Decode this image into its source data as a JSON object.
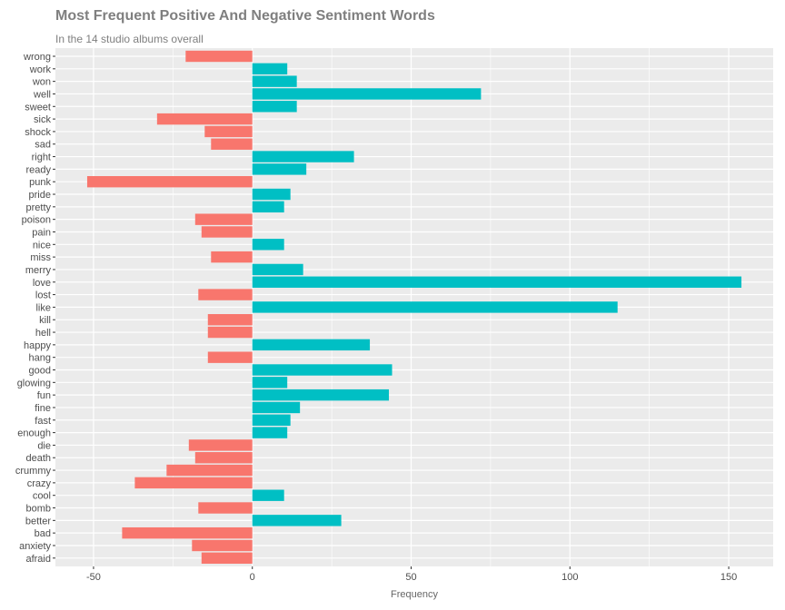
{
  "chart_data": {
    "type": "bar",
    "orientation": "horizontal",
    "title": "Most Frequent Positive And Negative Sentiment Words",
    "subtitle": "In the 14 studio albums overall",
    "xlabel": "Frequency",
    "ylabel": "",
    "xlim": [
      -62,
      164
    ],
    "xticks": [
      -50,
      0,
      50,
      100,
      150
    ],
    "grid": true,
    "legend": "none",
    "colors": {
      "negative": "#F8766D",
      "positive": "#00BFC4",
      "panel": "#EBEBEB",
      "grid": "#FFFFFF"
    },
    "categories": [
      "wrong",
      "work",
      "won",
      "well",
      "sweet",
      "sick",
      "shock",
      "sad",
      "right",
      "ready",
      "punk",
      "pride",
      "pretty",
      "poison",
      "pain",
      "nice",
      "miss",
      "merry",
      "love",
      "lost",
      "like",
      "kill",
      "hell",
      "happy",
      "hang",
      "good",
      "glowing",
      "fun",
      "fine",
      "fast",
      "enough",
      "die",
      "death",
      "crummy",
      "crazy",
      "cool",
      "bomb",
      "better",
      "bad",
      "anxiety",
      "afraid"
    ],
    "values": [
      -21,
      11,
      14,
      72,
      14,
      -30,
      -15,
      -13,
      32,
      17,
      -52,
      12,
      10,
      -18,
      -16,
      10,
      -13,
      16,
      154,
      -17,
      115,
      -14,
      -14,
      37,
      -14,
      44,
      11,
      43,
      15,
      12,
      11,
      -20,
      -18,
      -27,
      -37,
      10,
      -17,
      28,
      -41,
      -19,
      -16
    ]
  }
}
